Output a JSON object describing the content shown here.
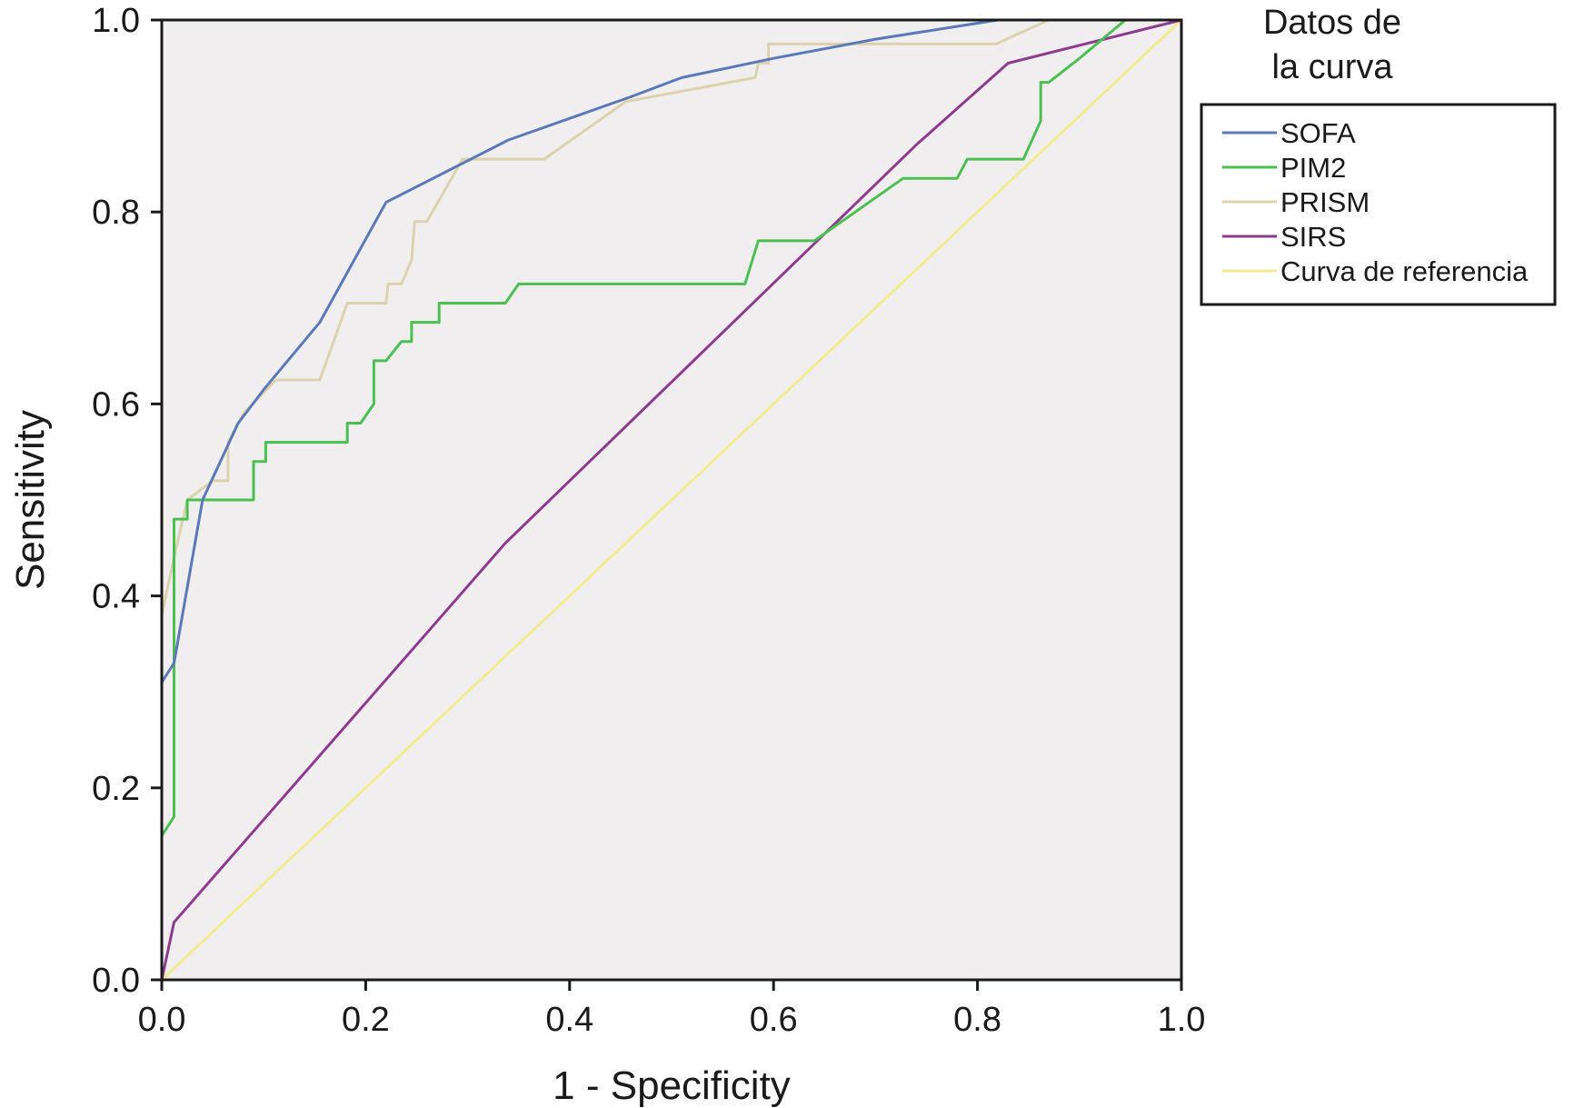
{
  "chart_data": {
    "type": "line",
    "title": "",
    "xlabel": "1 - Specificity",
    "ylabel": "Sensitivity",
    "xlim": [
      0,
      1
    ],
    "ylim": [
      0,
      1
    ],
    "xticks": [
      "0.0",
      "0.2",
      "0.4",
      "0.6",
      "0.8",
      "1.0"
    ],
    "yticks": [
      "0.0",
      "0.2",
      "0.4",
      "0.6",
      "0.8",
      "1.0"
    ],
    "plot_background": "#f0eeef",
    "grid": false,
    "legend": {
      "title_lines": [
        "Datos de",
        "la curva"
      ],
      "placement": "right"
    },
    "series": [
      {
        "name": "SOFA",
        "color": "#5b79b8",
        "points": [
          [
            0,
            0
          ],
          [
            0,
            0.31
          ],
          [
            0.012,
            0.33
          ],
          [
            0.04,
            0.5
          ],
          [
            0.075,
            0.58
          ],
          [
            0.1,
            0.615
          ],
          [
            0.155,
            0.685
          ],
          [
            0.22,
            0.81
          ],
          [
            0.34,
            0.875
          ],
          [
            0.46,
            0.92
          ],
          [
            0.51,
            0.94
          ],
          [
            0.6,
            0.96
          ],
          [
            0.7,
            0.98
          ],
          [
            0.82,
            1.0
          ],
          [
            1.0,
            1.0
          ]
        ]
      },
      {
        "name": "PIM2",
        "color": "#4cbf52",
        "points": [
          [
            0,
            0
          ],
          [
            0,
            0.15
          ],
          [
            0.012,
            0.17
          ],
          [
            0.012,
            0.48
          ],
          [
            0.025,
            0.48
          ],
          [
            0.025,
            0.5
          ],
          [
            0.09,
            0.5
          ],
          [
            0.09,
            0.54
          ],
          [
            0.102,
            0.54
          ],
          [
            0.102,
            0.56
          ],
          [
            0.182,
            0.56
          ],
          [
            0.182,
            0.58
          ],
          [
            0.195,
            0.58
          ],
          [
            0.208,
            0.6
          ],
          [
            0.208,
            0.645
          ],
          [
            0.22,
            0.645
          ],
          [
            0.235,
            0.665
          ],
          [
            0.245,
            0.665
          ],
          [
            0.245,
            0.685
          ],
          [
            0.272,
            0.685
          ],
          [
            0.272,
            0.705
          ],
          [
            0.337,
            0.705
          ],
          [
            0.35,
            0.725
          ],
          [
            0.572,
            0.725
          ],
          [
            0.585,
            0.77
          ],
          [
            0.64,
            0.77
          ],
          [
            0.727,
            0.835
          ],
          [
            0.78,
            0.835
          ],
          [
            0.79,
            0.855
          ],
          [
            0.845,
            0.855
          ],
          [
            0.862,
            0.895
          ],
          [
            0.862,
            0.935
          ],
          [
            0.87,
            0.935
          ],
          [
            0.9,
            0.96
          ],
          [
            0.945,
            1.0
          ],
          [
            1.0,
            1.0
          ]
        ]
      },
      {
        "name": "PRISM",
        "color": "#dcd2ad",
        "points": [
          [
            0,
            0
          ],
          [
            0,
            0.38
          ],
          [
            0.012,
            0.44
          ],
          [
            0.025,
            0.5
          ],
          [
            0.05,
            0.52
          ],
          [
            0.065,
            0.52
          ],
          [
            0.065,
            0.56
          ],
          [
            0.08,
            0.59
          ],
          [
            0.112,
            0.625
          ],
          [
            0.155,
            0.625
          ],
          [
            0.182,
            0.705
          ],
          [
            0.22,
            0.705
          ],
          [
            0.222,
            0.725
          ],
          [
            0.235,
            0.725
          ],
          [
            0.245,
            0.75
          ],
          [
            0.248,
            0.79
          ],
          [
            0.26,
            0.79
          ],
          [
            0.295,
            0.855
          ],
          [
            0.375,
            0.855
          ],
          [
            0.455,
            0.915
          ],
          [
            0.582,
            0.94
          ],
          [
            0.585,
            0.955
          ],
          [
            0.595,
            0.955
          ],
          [
            0.595,
            0.975
          ],
          [
            0.818,
            0.975
          ],
          [
            0.87,
            1.0
          ],
          [
            1.0,
            1.0
          ]
        ]
      },
      {
        "name": "SIRS",
        "color": "#8e3b8f",
        "points": [
          [
            0,
            0
          ],
          [
            0.012,
            0.06
          ],
          [
            0.337,
            0.455
          ],
          [
            0.74,
            0.87
          ],
          [
            0.83,
            0.955
          ],
          [
            1.0,
            1.0
          ]
        ]
      },
      {
        "name": "Curva de referencia",
        "color": "#f2ec93",
        "points": [
          [
            0,
            0
          ],
          [
            1,
            1
          ]
        ]
      }
    ]
  }
}
